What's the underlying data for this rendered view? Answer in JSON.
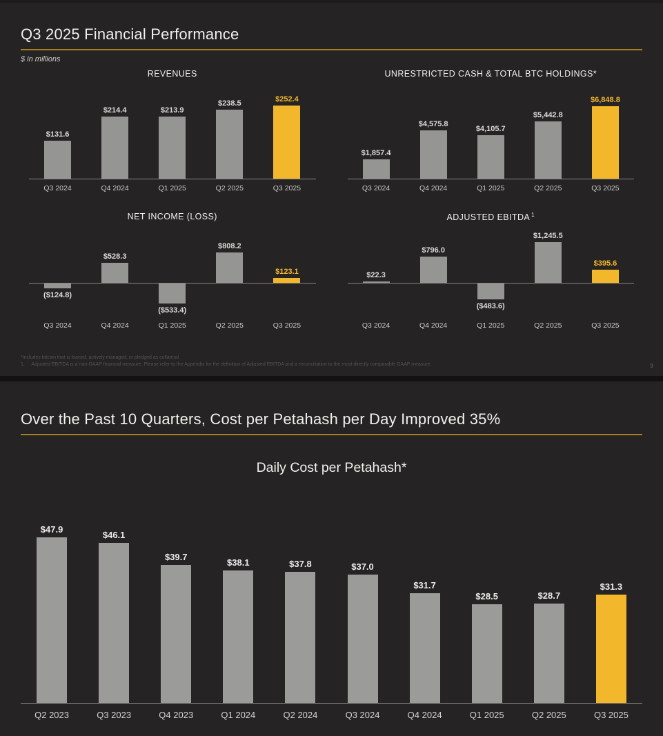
{
  "colors": {
    "gold": "#F3B72B",
    "gold_line": "#A8801F",
    "bar_gray": "#959593",
    "slide_bg": "#262324",
    "gap_bg": "#131112"
  },
  "slide1": {
    "title": "Q3 2025 Financial Performance",
    "units_note": "$ in millions",
    "footnote1": "*Includes bitcoin that is loaned, actively managed, or pledged as collateral",
    "footnote2": "1.     Adjusted EBITDA is a non-GAAP financial measure. Please refer to the Appendix for the definition of Adjusted EBITDA and a reconciliation to the most directly comparable GAAP measure.",
    "page_number": "9"
  },
  "slide2": {
    "title": "Over the Past 10 Quarters, Cost per Petahash per Day Improved 35%"
  },
  "chart_data": [
    {
      "id": "revenues",
      "type": "bar",
      "title": "REVENUES",
      "categories": [
        "Q3 2024",
        "Q4 2024",
        "Q1 2025",
        "Q2 2025",
        "Q3 2025"
      ],
      "values": [
        131.6,
        214.4,
        213.9,
        238.5,
        252.4
      ],
      "labels": [
        "$131.6",
        "$214.4",
        "$213.9",
        "$238.5",
        "$252.4"
      ],
      "highlight_index": 4,
      "units": "$ in millions",
      "legend": "none",
      "grid": false
    },
    {
      "id": "cash-btc-holdings",
      "type": "bar",
      "title": "UNRESTRICTED CASH & TOTAL BTC HOLDINGS*",
      "categories": [
        "Q3 2024",
        "Q4 2024",
        "Q1 2025",
        "Q2 2025",
        "Q3 2025"
      ],
      "values": [
        1857.4,
        4575.8,
        4105.7,
        5442.8,
        6848.8
      ],
      "labels": [
        "$1,857.4",
        "$4,575.8",
        "$4,105.7",
        "$5,442.8",
        "$6,848.8"
      ],
      "highlight_index": 4,
      "units": "$ in millions",
      "legend": "none",
      "grid": false
    },
    {
      "id": "net-income-loss",
      "type": "bar",
      "title": "NET INCOME (LOSS)",
      "categories": [
        "Q3 2024",
        "Q4 2024",
        "Q1 2025",
        "Q2 2025",
        "Q3 2025"
      ],
      "values": [
        -124.8,
        528.3,
        -533.4,
        808.2,
        123.1
      ],
      "labels": [
        "($124.8)",
        "$528.3",
        "($533.4)",
        "$808.2",
        "$123.1"
      ],
      "highlight_index": 4,
      "units": "$ in millions",
      "legend": "none",
      "grid": false
    },
    {
      "id": "adjusted-ebitda",
      "type": "bar",
      "title": "ADJUSTED EBITDA",
      "title_superscript": "1",
      "categories": [
        "Q3 2024",
        "Q4 2024",
        "Q1 2025",
        "Q2 2025",
        "Q3 2025"
      ],
      "values": [
        22.3,
        796.0,
        -483.6,
        1245.5,
        395.6
      ],
      "labels": [
        "$22.3",
        "$796.0",
        "($483.6)",
        "$1,245.5",
        "$395.6"
      ],
      "highlight_index": 4,
      "units": "$ in millions",
      "legend": "none",
      "grid": false
    },
    {
      "id": "daily-cost-per-petahash",
      "type": "bar",
      "title": "Daily Cost per Petahash*",
      "categories": [
        "Q2 2023",
        "Q3 2023",
        "Q4 2023",
        "Q1 2024",
        "Q2 2024",
        "Q3 2024",
        "Q4 2024",
        "Q1 2025",
        "Q2 2025",
        "Q3 2025"
      ],
      "values": [
        47.9,
        46.1,
        39.7,
        38.1,
        37.8,
        37.0,
        31.7,
        28.5,
        28.7,
        31.3
      ],
      "labels": [
        "$47.9",
        "$46.1",
        "$39.7",
        "$38.1",
        "$37.8",
        "$37.0",
        "$31.7",
        "$28.5",
        "$28.7",
        "$31.3"
      ],
      "highlight_index": 9,
      "units": "$ per petahash per day",
      "legend": "none",
      "grid": false
    }
  ]
}
